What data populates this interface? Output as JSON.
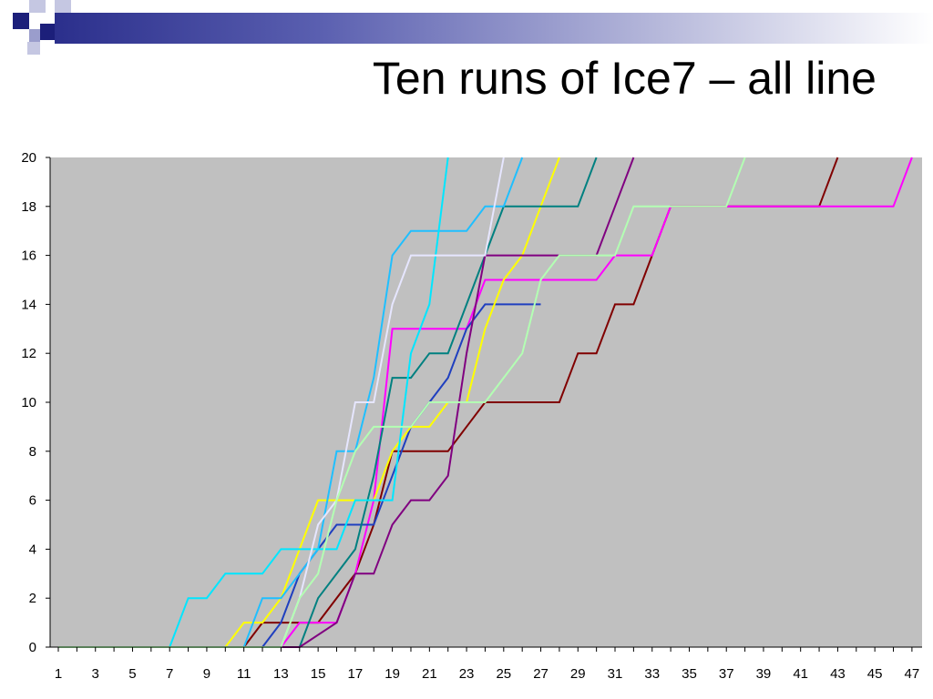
{
  "slide": {
    "title": "Ten runs of Ice7 – all line"
  },
  "chart_data": {
    "type": "line",
    "title": "",
    "xlabel": "",
    "ylabel": "",
    "xlim": [
      1,
      47
    ],
    "ylim": [
      0,
      20
    ],
    "x_tick_labels": [
      "1",
      "3",
      "5",
      "7",
      "9",
      "11",
      "13",
      "15",
      "17",
      "19",
      "21",
      "23",
      "25",
      "27",
      "29",
      "31",
      "33",
      "35",
      "37",
      "39",
      "41",
      "43",
      "45",
      "47"
    ],
    "y_tick_labels": [
      "0",
      "2",
      "4",
      "6",
      "8",
      "10",
      "12",
      "14",
      "16",
      "18",
      "20"
    ],
    "plot_background": "#c0c0c0",
    "grid": false,
    "legend": "none",
    "series": [
      {
        "color": "#800000",
        "points": [
          [
            1,
            0
          ],
          [
            11,
            0
          ],
          [
            12,
            1
          ],
          [
            15,
            1
          ],
          [
            17,
            3
          ],
          [
            18,
            5
          ],
          [
            19,
            8
          ],
          [
            22,
            8
          ],
          [
            24,
            10
          ],
          [
            28,
            10
          ],
          [
            29,
            12
          ],
          [
            30,
            12
          ],
          [
            31,
            14
          ],
          [
            32,
            14
          ],
          [
            33,
            16
          ],
          [
            34,
            18
          ],
          [
            42,
            18
          ],
          [
            43,
            20
          ]
        ]
      },
      {
        "color": "#ff00ff",
        "points": [
          [
            1,
            0
          ],
          [
            13,
            0
          ],
          [
            14,
            1
          ],
          [
            16,
            1
          ],
          [
            17,
            3
          ],
          [
            18,
            6
          ],
          [
            19,
            13
          ],
          [
            23,
            13
          ],
          [
            24,
            15
          ],
          [
            30,
            15
          ],
          [
            31,
            16
          ],
          [
            33,
            16
          ],
          [
            34,
            18
          ],
          [
            46,
            18
          ],
          [
            47,
            20
          ]
        ]
      },
      {
        "color": "#1f3fbf",
        "points": [
          [
            1,
            0
          ],
          [
            12,
            0
          ],
          [
            13,
            1
          ],
          [
            14,
            3
          ],
          [
            16,
            5
          ],
          [
            18,
            5
          ],
          [
            19,
            7
          ],
          [
            20,
            9
          ],
          [
            21,
            10
          ],
          [
            22,
            11
          ],
          [
            23,
            13
          ],
          [
            24,
            14
          ],
          [
            27,
            14
          ]
        ]
      },
      {
        "color": "#ffff00",
        "points": [
          [
            1,
            0
          ],
          [
            10,
            0
          ],
          [
            11,
            1
          ],
          [
            12,
            1
          ],
          [
            13,
            2
          ],
          [
            14,
            4
          ],
          [
            15,
            6
          ],
          [
            17,
            6
          ],
          [
            18,
            6
          ],
          [
            19,
            8
          ],
          [
            20,
            9
          ],
          [
            21,
            9
          ],
          [
            22,
            10
          ],
          [
            23,
            10
          ],
          [
            24,
            13
          ],
          [
            25,
            15
          ],
          [
            26,
            16
          ],
          [
            27,
            18
          ],
          [
            28,
            20
          ]
        ]
      },
      {
        "color": "#008080",
        "points": [
          [
            1,
            0
          ],
          [
            13,
            0
          ],
          [
            14,
            0
          ],
          [
            15,
            2
          ],
          [
            17,
            4
          ],
          [
            18,
            7
          ],
          [
            19,
            11
          ],
          [
            20,
            11
          ],
          [
            21,
            12
          ],
          [
            22,
            12
          ],
          [
            23,
            14
          ],
          [
            24,
            16
          ],
          [
            25,
            18
          ],
          [
            29,
            18
          ],
          [
            30,
            20
          ]
        ]
      },
      {
        "color": "#800080",
        "points": [
          [
            1,
            0
          ],
          [
            14,
            0
          ],
          [
            16,
            1
          ],
          [
            17,
            3
          ],
          [
            18,
            3
          ],
          [
            19,
            5
          ],
          [
            20,
            6
          ],
          [
            21,
            6
          ],
          [
            22,
            7
          ],
          [
            23,
            12
          ],
          [
            24,
            16
          ],
          [
            30,
            16
          ],
          [
            31,
            18
          ],
          [
            32,
            20
          ]
        ]
      },
      {
        "color": "#1fbfff",
        "points": [
          [
            1,
            0
          ],
          [
            11,
            0
          ],
          [
            12,
            2
          ],
          [
            13,
            2
          ],
          [
            14,
            3
          ],
          [
            15,
            4
          ],
          [
            16,
            8
          ],
          [
            17,
            8
          ],
          [
            18,
            11
          ],
          [
            19,
            16
          ],
          [
            20,
            17
          ],
          [
            23,
            17
          ],
          [
            24,
            18
          ],
          [
            25,
            18
          ],
          [
            26,
            20
          ]
        ]
      },
      {
        "color": "#00e6ff",
        "points": [
          [
            1,
            0
          ],
          [
            7,
            0
          ],
          [
            8,
            2
          ],
          [
            9,
            2
          ],
          [
            10,
            3
          ],
          [
            12,
            3
          ],
          [
            13,
            4
          ],
          [
            14,
            4
          ],
          [
            15,
            4
          ],
          [
            16,
            4
          ],
          [
            17,
            6
          ],
          [
            19,
            6
          ],
          [
            20,
            12
          ],
          [
            21,
            14
          ],
          [
            22,
            20
          ]
        ]
      },
      {
        "color": "#e6e6ff",
        "points": [
          [
            1,
            0
          ],
          [
            13,
            0
          ],
          [
            14,
            2
          ],
          [
            15,
            5
          ],
          [
            16,
            6
          ],
          [
            17,
            10
          ],
          [
            18,
            10
          ],
          [
            19,
            14
          ],
          [
            20,
            16
          ],
          [
            24,
            16
          ],
          [
            25,
            20
          ]
        ]
      },
      {
        "color": "#b3ffb3",
        "points": [
          [
            1,
            0
          ],
          [
            13,
            0
          ],
          [
            14,
            2
          ],
          [
            15,
            3
          ],
          [
            16,
            6
          ],
          [
            17,
            8
          ],
          [
            18,
            9
          ],
          [
            20,
            9
          ],
          [
            21,
            10
          ],
          [
            24,
            10
          ],
          [
            25,
            11
          ],
          [
            26,
            12
          ],
          [
            27,
            15
          ],
          [
            28,
            16
          ],
          [
            31,
            16
          ],
          [
            32,
            18
          ],
          [
            37,
            18
          ],
          [
            38,
            20
          ]
        ]
      }
    ]
  }
}
